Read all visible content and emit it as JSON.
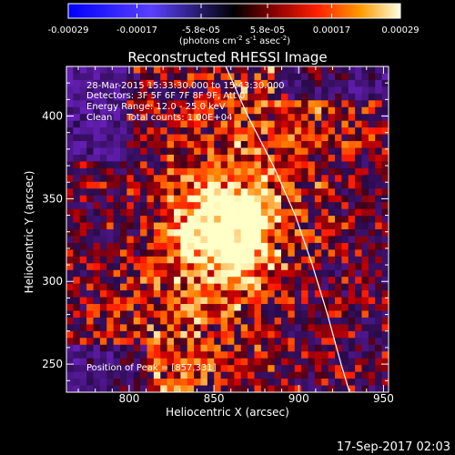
{
  "chart_data": {
    "type": "heatmap",
    "title": "Reconstructed RHESSI Image",
    "xlabel": "Heliocentric X (arcsec)",
    "ylabel": "Heliocentric Y (arcsec)",
    "xlim": [
      763,
      953
    ],
    "ylim": [
      233,
      430
    ],
    "x_ticks": [
      800,
      850,
      900,
      950
    ],
    "y_ticks": [
      250,
      300,
      350,
      400
    ],
    "peak": {
      "x": 857,
      "y": 331
    },
    "colorbar": {
      "ticks": [
        "-0.00029",
        "-0.00017",
        "-5.8e-05",
        "5.8e-05",
        "0.00017",
        "0.00029"
      ],
      "range": [
        -0.00029,
        0.00029
      ],
      "unit_base": "(photons cm",
      "unit_exp1": "-2",
      "unit_mid": " s",
      "unit_exp2": "-1",
      "unit_mid2": " asec",
      "unit_exp3": "-2",
      "unit_end": ")"
    },
    "annotations": [
      "28-Mar-2015 15:33:30.000 to 15:43:30.000",
      "Detectors: 3F 5F 6F 7F 8F 9F, Att 0",
      "Energy Range: 12.0 - 25.0 keV",
      "Clean     Total counts: 1.00E+04"
    ],
    "peak_label": "Position of Peak = [857,331]",
    "limb_curve": [
      [
        857,
        430
      ],
      [
        870,
        400
      ],
      [
        885,
        370
      ],
      [
        898,
        340
      ],
      [
        908,
        310
      ],
      [
        917,
        280
      ],
      [
        925,
        250
      ],
      [
        930,
        233
      ]
    ],
    "colors": {
      "background": "#000000",
      "text": "#ffffff"
    }
  },
  "footer_date": "17-Sep-2017 02:03"
}
